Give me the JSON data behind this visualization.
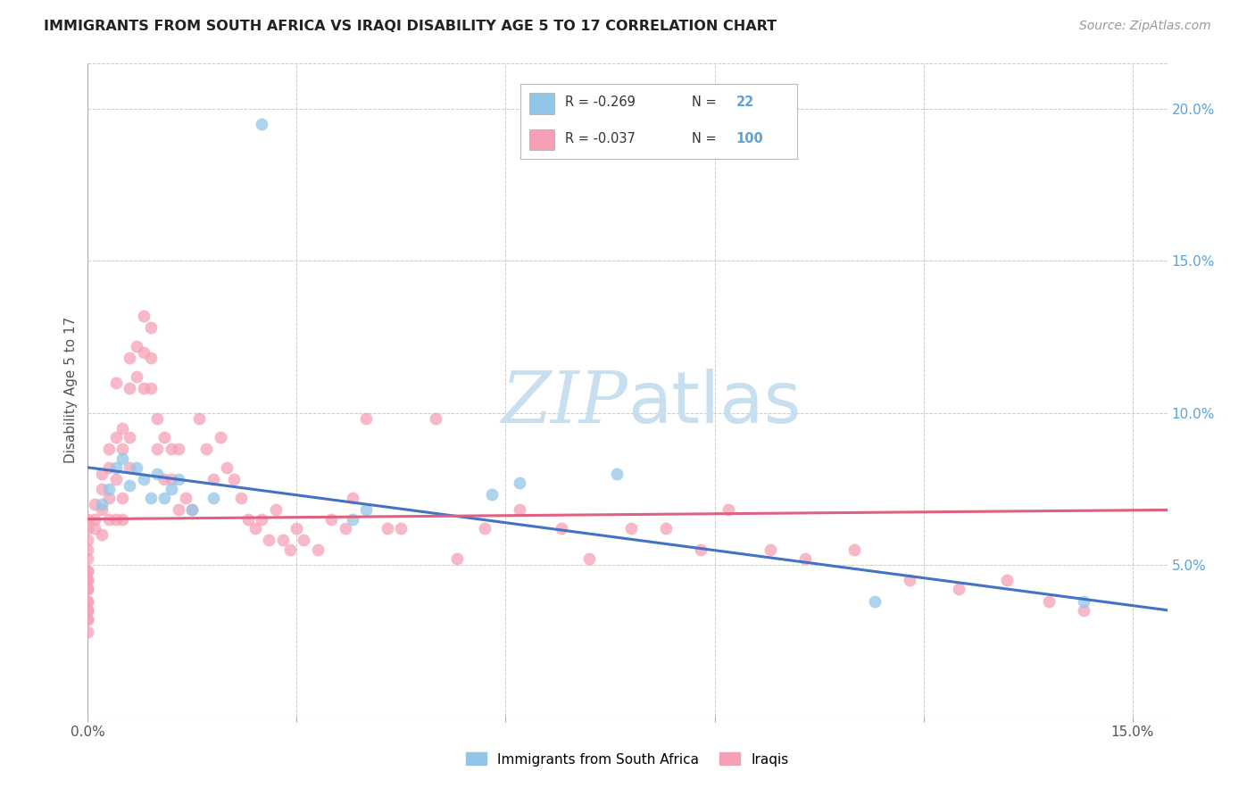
{
  "title": "IMMIGRANTS FROM SOUTH AFRICA VS IRAQI DISABILITY AGE 5 TO 17 CORRELATION CHART",
  "source": "Source: ZipAtlas.com",
  "ylabel": "Disability Age 5 to 17",
  "xlim": [
    0.0,
    0.155
  ],
  "ylim": [
    0.0,
    0.215
  ],
  "x_tick_positions": [
    0.0,
    0.03,
    0.06,
    0.09,
    0.12,
    0.15
  ],
  "x_tick_labels": [
    "0.0%",
    "",
    "",
    "",
    "",
    "15.0%"
  ],
  "y_ticks_right": [
    0.05,
    0.1,
    0.15,
    0.2
  ],
  "y_tick_labels_right": [
    "5.0%",
    "10.0%",
    "15.0%",
    "20.0%"
  ],
  "color_blue": "#92C5E8",
  "color_pink": "#F5A0B5",
  "color_line_blue": "#4472C4",
  "color_line_pink": "#E06080",
  "color_right_axis": "#5BA3DC",
  "color_grid": "#CCCCCC",
  "watermark_color": "#C8DFF0",
  "sa_x": [
    0.025,
    0.005,
    0.007,
    0.003,
    0.008,
    0.01,
    0.009,
    0.006,
    0.004,
    0.002,
    0.012,
    0.013,
    0.011,
    0.015,
    0.018,
    0.04,
    0.038,
    0.058,
    0.062,
    0.076,
    0.113,
    0.143
  ],
  "sa_y": [
    0.195,
    0.085,
    0.082,
    0.075,
    0.078,
    0.08,
    0.072,
    0.076,
    0.082,
    0.07,
    0.075,
    0.078,
    0.072,
    0.068,
    0.072,
    0.068,
    0.065,
    0.073,
    0.077,
    0.08,
    0.038,
    0.038
  ],
  "iq_x": [
    0.001,
    0.001,
    0.001,
    0.002,
    0.002,
    0.002,
    0.002,
    0.003,
    0.003,
    0.003,
    0.003,
    0.004,
    0.004,
    0.004,
    0.004,
    0.005,
    0.005,
    0.005,
    0.005,
    0.006,
    0.006,
    0.006,
    0.006,
    0.007,
    0.007,
    0.008,
    0.008,
    0.008,
    0.009,
    0.009,
    0.009,
    0.01,
    0.01,
    0.011,
    0.011,
    0.012,
    0.012,
    0.013,
    0.013,
    0.014,
    0.015,
    0.016,
    0.017,
    0.018,
    0.019,
    0.02,
    0.021,
    0.022,
    0.023,
    0.024,
    0.025,
    0.026,
    0.027,
    0.028,
    0.029,
    0.03,
    0.031,
    0.033,
    0.035,
    0.037,
    0.038,
    0.04,
    0.043,
    0.045,
    0.05,
    0.053,
    0.057,
    0.062,
    0.068,
    0.072,
    0.078,
    0.083,
    0.088,
    0.092,
    0.098,
    0.103,
    0.11,
    0.118,
    0.125,
    0.132,
    0.138,
    0.143,
    0.0,
    0.0,
    0.0,
    0.0,
    0.0,
    0.0,
    0.0,
    0.0,
    0.0,
    0.0,
    0.0,
    0.0,
    0.0,
    0.0,
    0.0,
    0.0,
    0.0,
    0.0
  ],
  "iq_y": [
    0.07,
    0.065,
    0.062,
    0.075,
    0.068,
    0.08,
    0.06,
    0.088,
    0.082,
    0.072,
    0.065,
    0.11,
    0.092,
    0.078,
    0.065,
    0.095,
    0.088,
    0.072,
    0.065,
    0.118,
    0.108,
    0.092,
    0.082,
    0.122,
    0.112,
    0.132,
    0.12,
    0.108,
    0.128,
    0.118,
    0.108,
    0.098,
    0.088,
    0.092,
    0.078,
    0.088,
    0.078,
    0.068,
    0.088,
    0.072,
    0.068,
    0.098,
    0.088,
    0.078,
    0.092,
    0.082,
    0.078,
    0.072,
    0.065,
    0.062,
    0.065,
    0.058,
    0.068,
    0.058,
    0.055,
    0.062,
    0.058,
    0.055,
    0.065,
    0.062,
    0.072,
    0.098,
    0.062,
    0.062,
    0.098,
    0.052,
    0.062,
    0.068,
    0.062,
    0.052,
    0.062,
    0.062,
    0.055,
    0.068,
    0.055,
    0.052,
    0.055,
    0.045,
    0.042,
    0.045,
    0.038,
    0.035,
    0.065,
    0.062,
    0.058,
    0.055,
    0.052,
    0.048,
    0.045,
    0.042,
    0.038,
    0.035,
    0.032,
    0.048,
    0.045,
    0.042,
    0.038,
    0.035,
    0.032,
    0.028
  ],
  "sa_trend_x": [
    0.0,
    0.155
  ],
  "sa_trend_y": [
    0.082,
    0.035
  ],
  "iq_trend_x": [
    0.0,
    0.155
  ],
  "iq_trend_y": [
    0.065,
    0.068
  ]
}
